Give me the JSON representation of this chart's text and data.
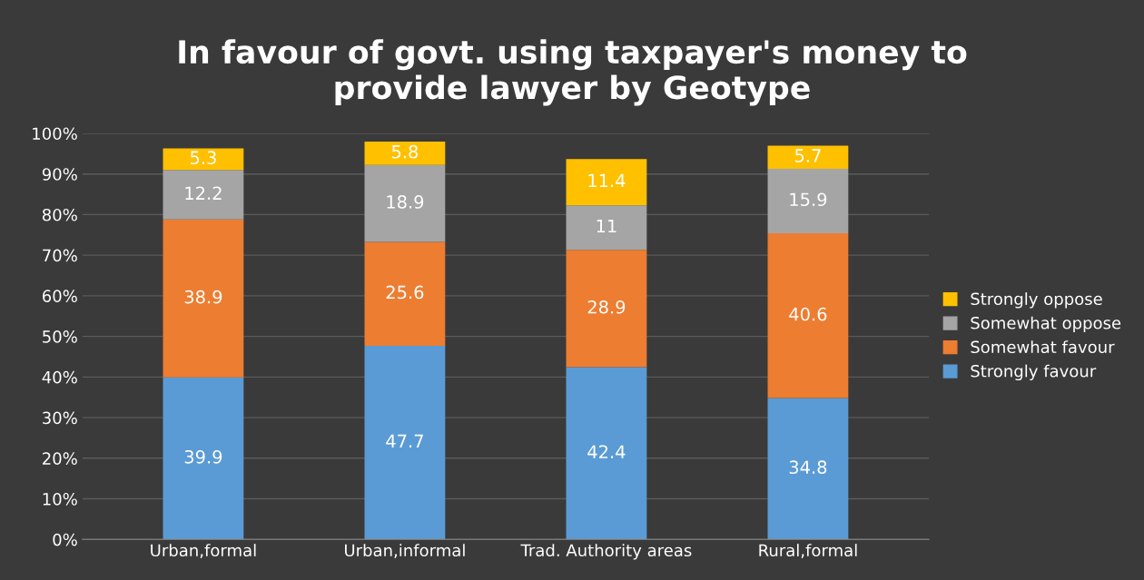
{
  "chart_data": {
    "type": "bar",
    "stacked": true,
    "title": "In favour of govt. using taxpayer's money to provide lawyer by Geotype",
    "categories": [
      "Urban,formal",
      "Urban,informal",
      "Trad. Authority areas",
      "Rural,formal"
    ],
    "series": [
      {
        "name": "Strongly favour",
        "color": "#5b9bd5",
        "values": [
          39.9,
          47.7,
          42.4,
          34.8
        ]
      },
      {
        "name": "Somewhat favour",
        "color": "#ed7d31",
        "values": [
          38.9,
          25.6,
          28.9,
          40.6
        ]
      },
      {
        "name": "Somewhat oppose",
        "color": "#a5a5a5",
        "values": [
          12.2,
          18.9,
          11,
          15.9
        ]
      },
      {
        "name": "Strongly oppose",
        "color": "#ffc000",
        "values": [
          5.3,
          5.8,
          11.4,
          5.7
        ]
      }
    ],
    "data_labels": true,
    "ylim": [
      0,
      100
    ],
    "yticks": [
      {
        "value": 0,
        "label": "0%"
      },
      {
        "value": 10,
        "label": "10%"
      },
      {
        "value": 20,
        "label": "20%"
      },
      {
        "value": 30,
        "label": "30%"
      },
      {
        "value": 40,
        "label": "40%"
      },
      {
        "value": 50,
        "label": "50%"
      },
      {
        "value": 60,
        "label": "60%"
      },
      {
        "value": 70,
        "label": "70%"
      },
      {
        "value": 80,
        "label": "80%"
      },
      {
        "value": 90,
        "label": "90%"
      },
      {
        "value": 100,
        "label": "100%"
      }
    ],
    "grid": "y",
    "legend": "right"
  }
}
